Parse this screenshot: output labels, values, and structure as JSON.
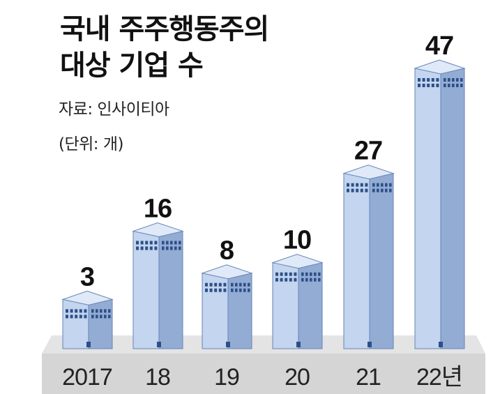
{
  "title": {
    "line1": "국내 주주행동주의",
    "line2": "대상 기업 수"
  },
  "source": "자료: 인사이티아",
  "unit": "(단위: 개)",
  "colors": {
    "building_front": "#c3d5ef",
    "building_side": "#93acd4",
    "building_roof": "#dfe9f8",
    "building_outline": "#6683b6",
    "window": "#2d4f88",
    "floor": "#d5d5d5",
    "value_text": "#111111",
    "label_text": "#222222"
  },
  "chart_data": {
    "type": "bar",
    "categories": [
      "2017",
      "18",
      "19",
      "20",
      "21",
      "22년"
    ],
    "values": [
      3,
      16,
      8,
      10,
      27,
      47
    ],
    "ylim": [
      0,
      47
    ]
  }
}
